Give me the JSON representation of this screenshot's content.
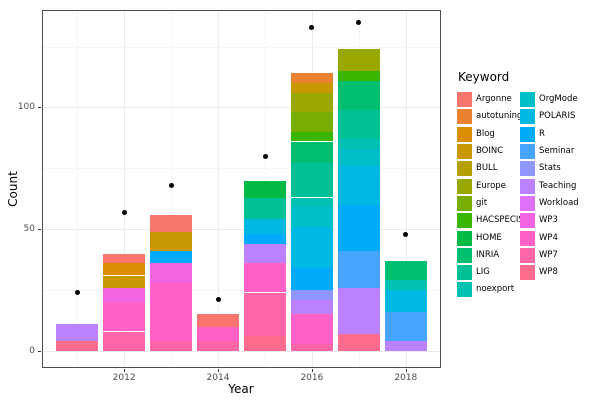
{
  "legend": {
    "title": "Keyword"
  },
  "chart_data": {
    "type": "bar",
    "stacked": true,
    "title": "",
    "xlabel": "Year",
    "ylabel": "Count",
    "legend_position": "right",
    "grid": true,
    "x_ticks": [
      {
        "value": 2012,
        "label": "2012"
      },
      {
        "value": 2014,
        "label": "2014"
      },
      {
        "value": 2016,
        "label": "2016"
      },
      {
        "value": 2018,
        "label": "2018"
      }
    ],
    "x_minor": [
      2011,
      2013,
      2015,
      2017
    ],
    "y_ticks": [
      {
        "value": 0,
        "label": "0"
      },
      {
        "value": 50,
        "label": "50"
      },
      {
        "value": 100,
        "label": "100"
      }
    ],
    "y_minor": [
      25,
      75,
      125
    ],
    "xlim": [
      2010.25,
      2018.75
    ],
    "ylim": [
      -7,
      140
    ],
    "keywords": [
      {
        "name": "Argonne",
        "color": "#F8766D"
      },
      {
        "name": "autotuning",
        "color": "#EA8331"
      },
      {
        "name": "Blog",
        "color": "#DB8E00"
      },
      {
        "name": "BOINC",
        "color": "#C99800"
      },
      {
        "name": "BULL",
        "color": "#B2A100"
      },
      {
        "name": "Europe",
        "color": "#99A800"
      },
      {
        "name": "git",
        "color": "#77AE00"
      },
      {
        "name": "HACSPECIS",
        "color": "#39B600"
      },
      {
        "name": "HOME",
        "color": "#00BB45"
      },
      {
        "name": "INRIA",
        "color": "#00BE70"
      },
      {
        "name": "LIG",
        "color": "#00C096"
      },
      {
        "name": "noexport",
        "color": "#00C1B2"
      },
      {
        "name": "OrgMode",
        "color": "#00BFC8"
      },
      {
        "name": "POLARIS",
        "color": "#00B9E3"
      },
      {
        "name": "R",
        "color": "#00ACF9"
      },
      {
        "name": "Seminar",
        "color": "#45A5FF"
      },
      {
        "name": "Stats",
        "color": "#8F96FF"
      },
      {
        "name": "Teaching",
        "color": "#BC81FF"
      },
      {
        "name": "Workload",
        "color": "#DF70F9"
      },
      {
        "name": "WP3",
        "color": "#F364E2"
      },
      {
        "name": "WP4",
        "color": "#FF61C7"
      },
      {
        "name": "WP7",
        "color": "#FF66A8"
      },
      {
        "name": "WP8",
        "color": "#FF6C8E"
      }
    ],
    "bars": [
      {
        "year": 2011,
        "total": 11,
        "segments": [
          [
            "WP8",
            4
          ],
          [
            "Teaching",
            7
          ]
        ]
      },
      {
        "year": 2012,
        "total": 40,
        "segments": [
          [
            "WP7",
            8
          ],
          [
            "WP4",
            12
          ],
          [
            "WP3",
            6
          ],
          [
            "BOINC",
            5
          ],
          [
            "Blog",
            5
          ],
          [
            "Argonne",
            4
          ]
        ]
      },
      {
        "year": 2013,
        "total": 56,
        "segments": [
          [
            "WP7",
            4
          ],
          [
            "WP4",
            24
          ],
          [
            "WP3",
            8
          ],
          [
            "R",
            5
          ],
          [
            "BOINC",
            8
          ],
          [
            "Argonne",
            7
          ]
        ]
      },
      {
        "year": 2014,
        "total": 15,
        "segments": [
          [
            "WP7",
            4
          ],
          [
            "WP4",
            6
          ],
          [
            "Argonne",
            5
          ]
        ]
      },
      {
        "year": 2015,
        "total": 70,
        "segments": [
          [
            "WP8",
            6
          ],
          [
            "WP7",
            18
          ],
          [
            "WP4",
            12
          ],
          [
            "Teaching",
            8
          ],
          [
            "R",
            4
          ],
          [
            "POLARIS",
            6
          ],
          [
            "LIG",
            9
          ],
          [
            "HOME",
            7
          ]
        ]
      },
      {
        "year": 2016,
        "total": 114,
        "segments": [
          [
            "WP7",
            3
          ],
          [
            "WP4",
            12
          ],
          [
            "Teaching",
            6
          ],
          [
            "Stats",
            4
          ],
          [
            "R",
            9
          ],
          [
            "POLARIS",
            17
          ],
          [
            "OrgMode",
            8
          ],
          [
            "noexport",
            4
          ],
          [
            "LIG",
            14
          ],
          [
            "INRIA",
            9
          ],
          [
            "HACSPECIS",
            4
          ],
          [
            "git",
            8
          ],
          [
            "Europe",
            8
          ],
          [
            "BOINC",
            4
          ],
          [
            "autotuning",
            4
          ]
        ]
      },
      {
        "year": 2017,
        "total": 124,
        "segments": [
          [
            "WP8",
            7
          ],
          [
            "Teaching",
            19
          ],
          [
            "Seminar",
            15
          ],
          [
            "R",
            19
          ],
          [
            "POLARIS",
            16
          ],
          [
            "OrgMode",
            7
          ],
          [
            "noexport",
            4
          ],
          [
            "LIG",
            12
          ],
          [
            "INRIA",
            12
          ],
          [
            "HACSPECIS",
            4
          ],
          [
            "Europe",
            9
          ]
        ]
      },
      {
        "year": 2018,
        "total": 37,
        "segments": [
          [
            "Teaching",
            4
          ],
          [
            "Seminar",
            12
          ],
          [
            "POLARIS",
            9
          ],
          [
            "noexport",
            4
          ],
          [
            "INRIA",
            8
          ]
        ]
      }
    ],
    "points": [
      [
        2011,
        24
      ],
      [
        2012,
        57
      ],
      [
        2013,
        68
      ],
      [
        2014,
        21
      ],
      [
        2015,
        80
      ],
      [
        2016,
        133
      ],
      [
        2017,
        135
      ],
      [
        2018,
        48
      ]
    ],
    "colors": {
      "point": "#000000",
      "grid_major": "#EBEBEB",
      "grid_minor": "#F5F5F5",
      "panel_border": "#4D4D4D",
      "tick_mark": "#333333",
      "tick_label": "#4D4D4D",
      "panel_bg": "#FFFFFF"
    }
  }
}
